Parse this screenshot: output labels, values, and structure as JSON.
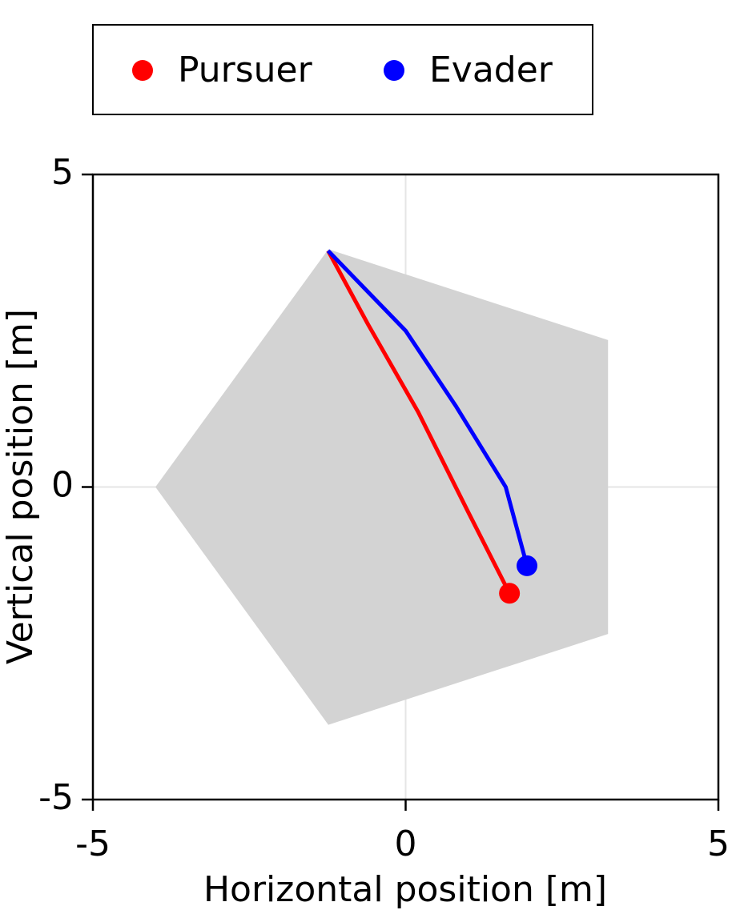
{
  "chart_data": {
    "type": "line",
    "xlabel": "Horizontal position [m]",
    "ylabel": "Vertical position [m]",
    "xlim": [
      -5,
      5
    ],
    "ylim": [
      -5,
      5
    ],
    "xticks": [
      {
        "value": -5,
        "label": "-5"
      },
      0,
      5
    ],
    "yticks": [
      {
        "value": -5,
        "label": "-5"
      },
      0,
      5
    ],
    "grid": true,
    "legend": "top",
    "region": {
      "x": [
        -4,
        -1.236,
        3.236,
        3.236,
        -1.236
      ],
      "y": [
        0,
        3.804,
        2.351,
        -2.351,
        -3.804
      ],
      "color": "#d3d3d3"
    },
    "series": [
      {
        "name": "Pursuer",
        "color": "#ff0000",
        "x": [
          -1.24,
          -0.6,
          0.2,
          1.0,
          1.66
        ],
        "values": [
          3.78,
          2.6,
          1.2,
          -0.4,
          -1.7
        ]
      },
      {
        "name": "Evader",
        "color": "#0000ff",
        "x": [
          -1.24,
          0.0,
          0.8,
          1.6,
          1.94
        ],
        "values": [
          3.78,
          2.5,
          1.3,
          0.0,
          -1.26
        ]
      }
    ]
  }
}
